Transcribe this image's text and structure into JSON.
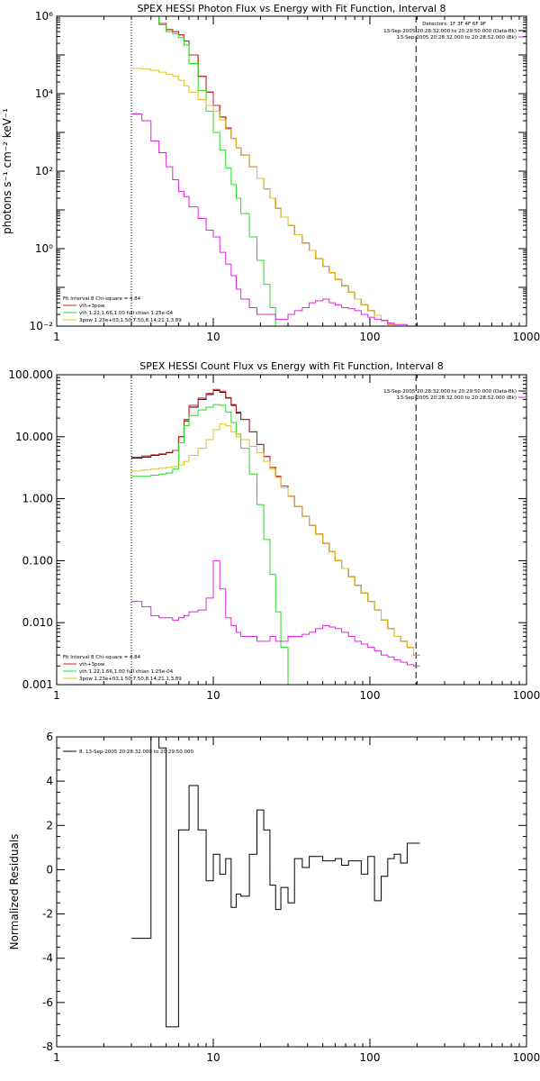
{
  "chart_data": [
    {
      "type": "line",
      "title": "SPEX HESSI Photon Flux vs Energy with Fit Function, Interval 8",
      "ylabel": "photons s⁻¹ cm⁻² keV⁻¹",
      "xlabel": "",
      "xscale": "log",
      "yscale": "log",
      "xlim": [
        1,
        1000
      ],
      "ylim": [
        0.01,
        1000000
      ],
      "xticks": [
        1,
        10,
        100,
        1000
      ],
      "xticklabels": [
        "1",
        "10",
        "100",
        "1000"
      ],
      "yticks": [
        0.01,
        1,
        100,
        10000,
        1000000
      ],
      "yticklabels": [
        "10⁻²",
        "10⁰",
        "10²",
        "10⁴",
        "10⁶"
      ],
      "vlines": [
        {
          "x": 3,
          "style": "dotted",
          "color": "#000000"
        },
        {
          "x": 197,
          "style": "dashed",
          "color": "#000000"
        }
      ],
      "x": [
        3,
        3.5,
        4,
        4.5,
        5,
        5.5,
        6,
        6.5,
        7,
        8,
        9,
        10,
        11,
        12,
        13,
        14,
        15,
        17,
        19,
        21,
        23,
        25,
        27,
        30,
        33,
        37,
        41,
        45,
        50,
        55,
        60,
        66,
        73,
        80,
        88,
        97,
        107,
        118,
        130,
        143,
        157,
        173,
        190
      ],
      "series": [
        {
          "name": "Data",
          "color": "#000000",
          "values": [
            1000000,
            1000000,
            1000000,
            650000,
            450000,
            400000,
            330000,
            230000,
            100000,
            28000,
            11000,
            5000,
            2500,
            1300,
            700,
            400,
            260,
            130,
            65,
            35,
            20,
            11,
            6.5,
            4,
            2.3,
            1.4,
            0.9,
            0.55,
            0.35,
            0.24,
            0.16,
            0.11,
            0.075,
            0.05,
            0.036,
            0.025,
            0.019,
            0.014,
            0.011,
            0.01,
            0.01,
            0.01,
            0.01
          ]
        },
        {
          "name": "vth+3pow",
          "color": "#d42020",
          "values": [
            1000000,
            1000000,
            1000000,
            650000,
            450000,
            400000,
            330000,
            230000,
            100000,
            28000,
            11000,
            5000,
            2500,
            1300,
            700,
            400,
            260,
            130,
            65,
            35,
            20,
            11,
            6.5,
            4,
            2.3,
            1.4,
            0.9,
            0.55,
            0.35,
            0.24,
            0.16,
            0.11,
            0.075,
            0.05,
            0.036,
            0.025,
            0.019,
            0.014,
            0.011,
            0.01,
            0.01,
            0.01,
            0.01
          ]
        },
        {
          "name": "vth 1.22,1.66,1.00 full chian 1.25e-04",
          "color": "#22dd22",
          "values": [
            1000000,
            1000000,
            1000000,
            600000,
            400000,
            350000,
            280000,
            180000,
            60000,
            12000,
            3500,
            1000,
            350,
            120,
            45,
            20,
            8,
            2,
            0.5,
            0.12,
            0.03,
            0.01,
            0.01,
            0.01,
            null,
            null,
            null,
            null,
            null,
            null,
            null,
            null,
            null,
            null,
            null,
            null,
            null,
            null,
            null,
            null,
            null,
            null,
            null
          ]
        },
        {
          "name": "3pow 1.23e+03,1.50,7.50,8.14,21.1,3.89",
          "color": "#e0c020",
          "values": [
            45000,
            43000,
            40000,
            36000,
            32000,
            28000,
            22000,
            16000,
            11000,
            7000,
            5000,
            3500,
            2100,
            1200,
            700,
            400,
            260,
            130,
            65,
            35,
            20,
            11,
            6.5,
            4,
            2.3,
            1.4,
            0.9,
            0.55,
            0.35,
            0.24,
            0.16,
            0.11,
            0.075,
            0.05,
            0.036,
            0.025,
            0.019,
            0.014,
            0.011,
            0.01,
            0.01,
            0.01,
            0.01
          ]
        },
        {
          "name": "Background",
          "color": "#e020e0",
          "values": [
            3000,
            2000,
            600,
            300,
            130,
            60,
            30,
            22,
            12,
            6,
            3,
            2,
            0.8,
            0.4,
            0.2,
            0.09,
            0.05,
            0.03,
            0.02,
            0.02,
            0.02,
            0.015,
            0.015,
            0.02,
            0.025,
            0.03,
            0.04,
            0.045,
            0.05,
            0.04,
            0.035,
            0.03,
            0.028,
            0.025,
            0.02,
            0.017,
            0.015,
            0.014,
            0.012,
            0.011,
            0.011,
            0.01,
            0.01
          ]
        }
      ],
      "legend": {
        "position": "bottom-left",
        "fit_label": "Fit Interval 8    Chi-square = 4.84",
        "entries": [
          "vth+3pow",
          "vth 1.22,1.66,1.00 full chian 1.25e-04",
          "3pow 1.23e+03,1.50,7.50,8.14,21.1,3.89"
        ]
      },
      "info": {
        "position": "top-right",
        "line1": "Detectors: 1F 3F 4F 6F 9F",
        "line2": "13-Sep-2005 20:28:32.000 to 20:29:50.000 (Data-Bk)",
        "line3": "13-Sep-2005 20:28:32.000 to 20:28:52.000 (Bk)"
      }
    },
    {
      "type": "line",
      "title": "SPEX HESSI Count Flux vs Energy with Fit Function, Interval 8",
      "ylabel": "",
      "xlabel": "",
      "xscale": "log",
      "yscale": "log",
      "xlim": [
        1,
        1000
      ],
      "ylim": [
        0.001,
        100
      ],
      "xticks": [
        1,
        10,
        100,
        1000
      ],
      "xticklabels": [
        "1",
        "10",
        "100",
        "1000"
      ],
      "yticks": [
        0.001,
        0.01,
        0.1,
        1,
        10,
        100
      ],
      "yticklabels": [
        "0.001",
        "0.010",
        "0.100",
        "1.000",
        "10.000",
        "100.000"
      ],
      "vlines": [
        {
          "x": 3,
          "style": "dotted",
          "color": "#000000"
        },
        {
          "x": 197,
          "style": "dashed",
          "color": "#000000"
        }
      ],
      "x": [
        3,
        3.5,
        4,
        4.5,
        5,
        5.5,
        6,
        6.5,
        7,
        8,
        9,
        10,
        11,
        12,
        13,
        14,
        15,
        17,
        19,
        21,
        23,
        25,
        27,
        30,
        33,
        37,
        41,
        45,
        50,
        55,
        60,
        66,
        73,
        80,
        88,
        97,
        107,
        118,
        130,
        143,
        157,
        173,
        190
      ],
      "series": [
        {
          "name": "Data",
          "color": "#000000",
          "values": [
            4.5,
            4.7,
            5,
            5.2,
            5.5,
            6,
            10,
            18,
            30,
            40,
            48,
            56,
            52,
            42,
            32,
            24,
            19,
            12,
            7.5,
            4.8,
            3.2,
            2.3,
            1.6,
            1.1,
            0.75,
            0.52,
            0.37,
            0.27,
            0.19,
            0.14,
            0.1,
            0.075,
            0.055,
            0.04,
            0.03,
            0.022,
            0.016,
            0.011,
            0.008,
            0.006,
            0.005,
            0.004,
            0.003
          ]
        },
        {
          "name": "vth+3pow",
          "color": "#d42020",
          "values": [
            4.7,
            4.9,
            5.1,
            5.3,
            5.6,
            6,
            10,
            19,
            32,
            42,
            50,
            58,
            54,
            43,
            33,
            25,
            19,
            12,
            7.5,
            4.8,
            3.2,
            2.3,
            1.6,
            1.1,
            0.75,
            0.52,
            0.37,
            0.27,
            0.19,
            0.14,
            0.1,
            0.075,
            0.055,
            0.04,
            0.03,
            0.022,
            0.016,
            0.011,
            0.008,
            0.006,
            0.005,
            0.004,
            0.003
          ]
        },
        {
          "name": "vth 1.22,1.66,1.00 full chian 1.25e-04",
          "color": "#22dd22",
          "values": [
            2.3,
            2.3,
            2.4,
            2.5,
            2.6,
            3,
            8,
            15,
            22,
            27,
            30,
            33,
            32,
            25,
            17,
            11,
            6.5,
            2.5,
            0.8,
            0.22,
            0.06,
            0.015,
            0.004,
            0.001,
            null,
            null,
            null,
            null,
            null,
            null,
            null,
            null,
            null,
            null,
            null,
            null,
            null,
            null,
            null,
            null,
            null,
            null,
            null
          ]
        },
        {
          "name": "3pow 1.23e+03,1.50,7.50,8.14,21.1,3.89",
          "color": "#e0c020",
          "values": [
            2.8,
            2.9,
            3,
            3.1,
            3.2,
            3.3,
            3.5,
            4,
            5,
            6.5,
            9,
            13,
            16,
            15,
            12,
            10,
            9,
            7,
            5.5,
            4,
            3,
            2.2,
            1.5,
            1.1,
            0.75,
            0.52,
            0.37,
            0.27,
            0.19,
            0.14,
            0.1,
            0.075,
            0.055,
            0.04,
            0.03,
            0.022,
            0.016,
            0.011,
            0.008,
            0.006,
            0.005,
            0.004,
            0.003
          ]
        },
        {
          "name": "Background",
          "color": "#e020e0",
          "values": [
            0.022,
            0.018,
            0.013,
            0.012,
            0.012,
            0.011,
            0.012,
            0.013,
            0.015,
            0.016,
            0.025,
            0.1,
            0.035,
            0.012,
            0.009,
            0.007,
            0.006,
            0.006,
            0.005,
            0.005,
            0.006,
            0.005,
            0.005,
            0.006,
            0.006,
            0.0065,
            0.007,
            0.008,
            0.009,
            0.0085,
            0.008,
            0.007,
            0.006,
            0.005,
            0.0045,
            0.004,
            0.0035,
            0.003,
            0.0028,
            0.0025,
            0.0023,
            0.0021,
            0.002
          ]
        }
      ],
      "legend": {
        "position": "bottom-left",
        "fit_label": "Fit Interval 8    Chi-square = 4.84",
        "entries": [
          "vth+3pow",
          "vth 1.22,1.66,1.00 full chian 1.25e-04",
          "3pow 1.23e+03,1.50,7.50,8.14,21.1,3.89"
        ]
      },
      "info": {
        "position": "top-right",
        "line2": "13-Sep-2005 20:28:32.000 to 20:29:50.000 (Data-Bk)",
        "line3": "13-Sep-2005 20:28:32.000 to 20:28:52.000 (Bk)"
      }
    },
    {
      "type": "line",
      "title": "",
      "ylabel": "Normalized Residuals",
      "xlabel": "",
      "xscale": "log",
      "yscale": "linear",
      "xlim": [
        1,
        1000
      ],
      "ylim": [
        -8,
        6
      ],
      "xticks": [
        1,
        10,
        100,
        1000
      ],
      "xticklabels": [
        "1",
        "10",
        "100",
        "1000"
      ],
      "yticks": [
        -8,
        -6,
        -4,
        -2,
        0,
        2,
        4,
        6
      ],
      "yticklabels": [
        "-8",
        "-6",
        "-4",
        "-2",
        "0",
        "2",
        "4",
        "6"
      ],
      "x": [
        3,
        4,
        4.5,
        5,
        6,
        7,
        8,
        9,
        10,
        11,
        12,
        13,
        14,
        15,
        17,
        19,
        21,
        23,
        25,
        27,
        30,
        33,
        37,
        41,
        45,
        50,
        55,
        60,
        66,
        73,
        80,
        88,
        97,
        107,
        118,
        130,
        143,
        157,
        173,
        190
      ],
      "series": [
        {
          "name": "8. 13-Sep-2005 20:28:32.000 to 20:29:50.000",
          "color": "#000000",
          "values": [
            -3.1,
            7,
            5.5,
            -7.1,
            1.8,
            3.8,
            1.8,
            -0.5,
            0.7,
            -0.2,
            0.5,
            -1.7,
            -1.1,
            -1.2,
            0.7,
            2.7,
            1.8,
            -0.7,
            -1.8,
            -0.8,
            -1.5,
            0.5,
            0.1,
            0.6,
            0.6,
            0.4,
            0.4,
            0.5,
            0.2,
            0.4,
            0.4,
            -0.2,
            0.6,
            -1.4,
            -0.3,
            0.5,
            0.7,
            0.3,
            1.2,
            1.2
          ]
        }
      ],
      "legend": {
        "position": "top-left"
      }
    }
  ]
}
